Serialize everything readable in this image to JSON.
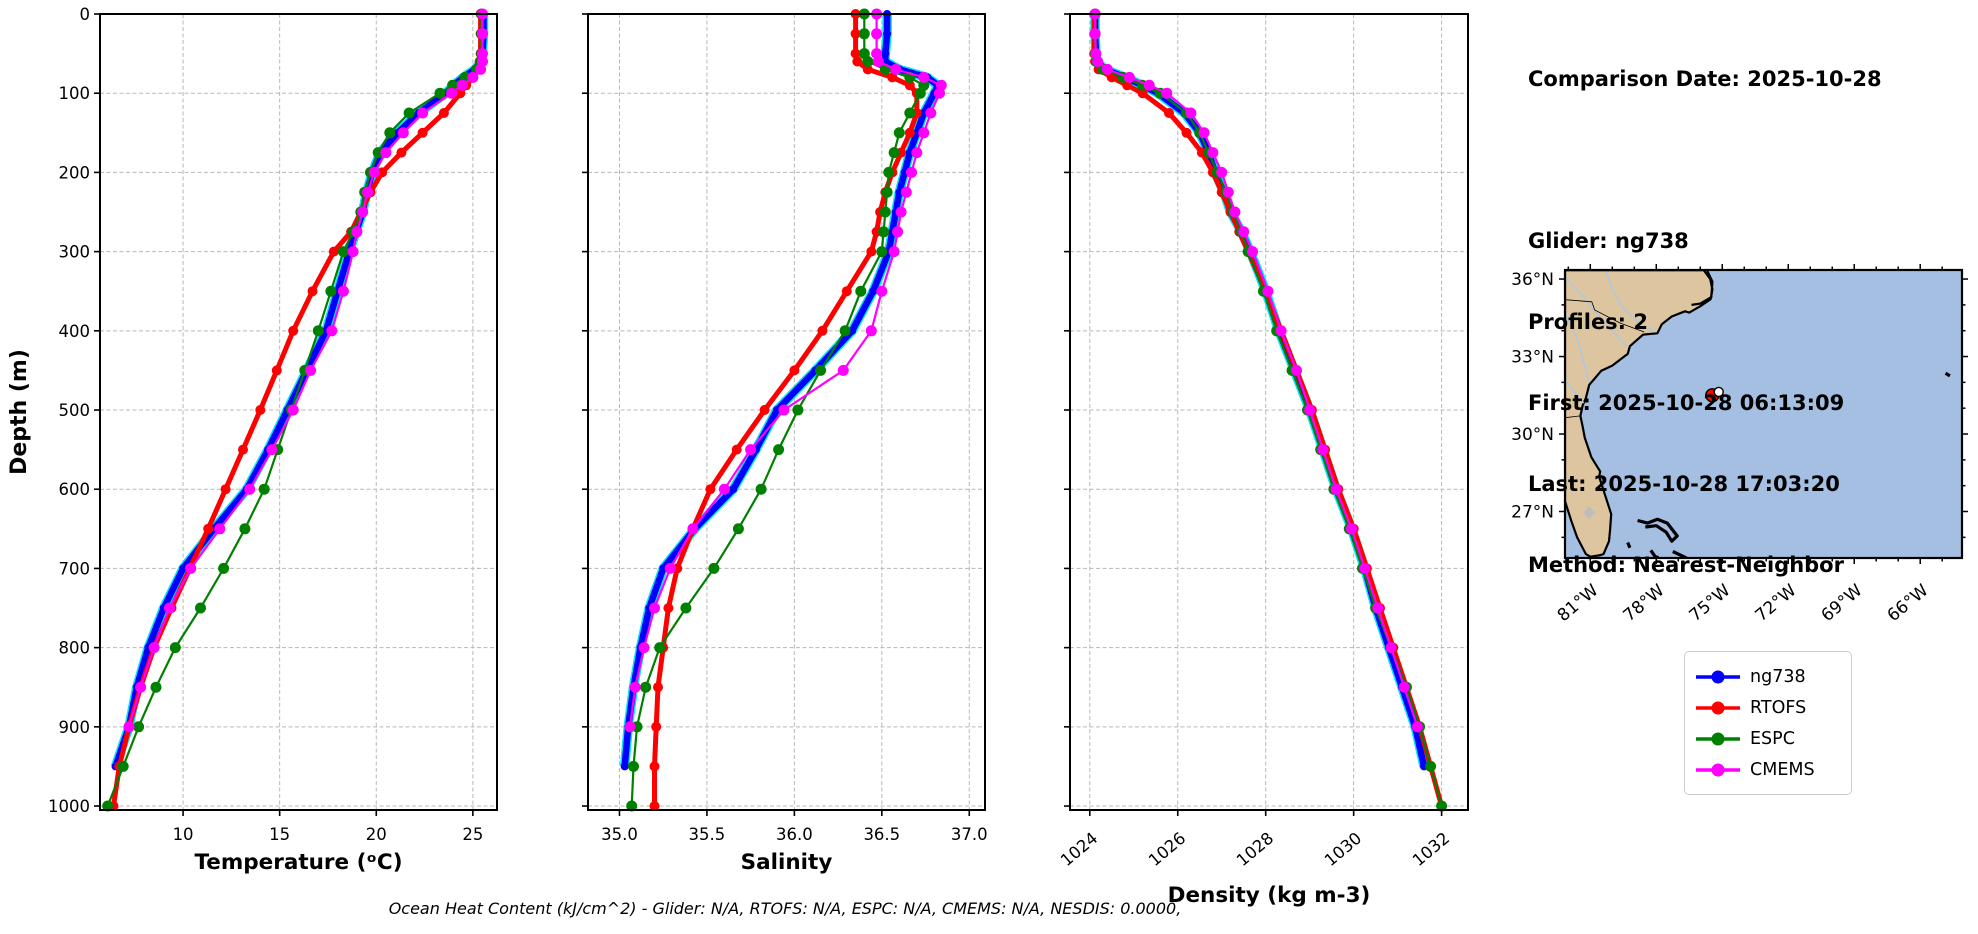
{
  "info": {
    "lines": [
      "Comparison Date: 2025-10-28",
      "",
      "Glider: ng738",
      "Profiles: 2",
      "First: 2025-10-28 06:13:09",
      "Last: 2025-10-28 17:03:20",
      "Method: Nearest-Neighbor"
    ]
  },
  "footer": {
    "text": "Ocean Heat Content (kJ/cm^2) - Glider: N/A,  RTOFS: N/A,  ESPC: N/A,  CMEMS: N/A,  NESDIS: 0.0000,"
  },
  "legend": {
    "items": [
      {
        "label": "ng738",
        "color": "#0000ff"
      },
      {
        "label": "RTOFS",
        "color": "#ff0000"
      },
      {
        "label": "ESPC",
        "color": "#008000"
      },
      {
        "label": "CMEMS",
        "color": "#ff00ff"
      }
    ]
  },
  "chart_data": {
    "type": "line",
    "orientation": "depth-profile",
    "ylabel": "Depth (m)",
    "ylim": [
      0,
      1005
    ],
    "yticks": [
      0,
      100,
      200,
      300,
      400,
      500,
      600,
      700,
      800,
      900,
      1000
    ],
    "grid": "dashed",
    "depths": [
      0,
      25,
      50,
      60,
      70,
      80,
      90,
      100,
      125,
      150,
      175,
      200,
      225,
      250,
      275,
      300,
      350,
      400,
      450,
      500,
      550,
      600,
      650,
      700,
      750,
      800,
      850,
      900,
      950,
      1000
    ],
    "series_style": [
      {
        "name": "ng738",
        "color": "#0000ff",
        "underlay": "#00e8f0",
        "lw": 6.5,
        "marker_r": 4
      },
      {
        "name": "RTOFS",
        "color": "#ff0000",
        "lw": 5,
        "marker_r": 5
      },
      {
        "name": "ESPC",
        "color": "#008000",
        "lw": 2.2,
        "marker_r": 5.5
      },
      {
        "name": "CMEMS",
        "color": "#ff00ff",
        "lw": 2.2,
        "marker_r": 5.5
      }
    ],
    "panels": [
      {
        "id": "temperature",
        "xlabel": "Temperature (ᵒC)",
        "xlim": [
          5.7,
          26.25
        ],
        "xticks": [
          10,
          15,
          20,
          25
        ],
        "xtick_labels": [
          "10",
          "15",
          "20",
          "25"
        ],
        "rotate_xticks": false,
        "series": [
          {
            "name": "ng738",
            "values": [
              25.55,
              25.55,
              25.5,
              25.45,
              25.1,
              24.5,
              24.0,
              23.6,
              22.2,
              21.1,
              20.2,
              19.8,
              19.5,
              19.3,
              18.95,
              18.6,
              18.0,
              17.4,
              16.4,
              15.4,
              14.4,
              13.3,
              11.6,
              10.0,
              9.0,
              8.2,
              7.6,
              7.2,
              6.5
            ]
          },
          {
            "name": "RTOFS",
            "values": [
              25.4,
              25.4,
              25.4,
              25.35,
              25.3,
              25.0,
              24.65,
              24.35,
              23.5,
              22.4,
              21.3,
              20.3,
              19.7,
              19.2,
              18.7,
              17.8,
              16.7,
              15.7,
              14.85,
              14.0,
              13.1,
              12.2,
              11.3,
              10.35,
              9.4,
              8.5,
              7.8,
              7.2,
              6.7,
              6.4
            ]
          },
          {
            "name": "ESPC",
            "values": [
              25.45,
              25.45,
              25.45,
              25.4,
              25.2,
              24.6,
              23.95,
              23.3,
              21.7,
              20.7,
              20.1,
              19.7,
              19.4,
              19.2,
              18.8,
              18.3,
              17.65,
              17.0,
              16.3,
              15.6,
              14.9,
              14.2,
              13.2,
              12.1,
              10.9,
              9.6,
              8.6,
              7.7,
              6.9,
              6.1
            ]
          },
          {
            "name": "CMEMS",
            "values": [
              25.5,
              25.5,
              25.5,
              25.5,
              25.4,
              25.0,
              24.45,
              23.9,
              22.4,
              21.4,
              20.5,
              19.9,
              19.55,
              19.3,
              19.0,
              18.8,
              18.3,
              17.7,
              16.6,
              15.7,
              14.6,
              13.45,
              11.9,
              10.4,
              9.3,
              8.5,
              7.8,
              7.2
            ]
          }
        ]
      },
      {
        "id": "salinity",
        "xlabel": "Salinity",
        "xlim": [
          34.82,
          37.09
        ],
        "xticks": [
          35.0,
          35.5,
          36.0,
          36.5,
          37.0
        ],
        "xtick_labels": [
          "35.0",
          "35.5",
          "36.0",
          "36.5",
          "37.0"
        ],
        "rotate_xticks": false,
        "series": [
          {
            "name": "ng738",
            "values": [
              36.53,
              36.53,
              36.52,
              36.52,
              36.6,
              36.76,
              36.82,
              36.8,
              36.74,
              36.7,
              36.66,
              36.63,
              36.6,
              36.58,
              36.56,
              36.54,
              36.45,
              36.33,
              36.12,
              35.9,
              35.78,
              35.65,
              35.43,
              35.25,
              35.17,
              35.12,
              35.08,
              35.05,
              35.03
            ]
          },
          {
            "name": "RTOFS",
            "values": [
              36.35,
              36.35,
              36.35,
              36.36,
              36.42,
              36.56,
              36.66,
              36.7,
              36.7,
              36.66,
              36.61,
              36.56,
              36.52,
              36.49,
              36.47,
              36.44,
              36.3,
              36.16,
              36.0,
              35.83,
              35.67,
              35.52,
              35.42,
              35.33,
              35.28,
              35.25,
              35.22,
              35.21,
              35.2,
              35.2
            ]
          },
          {
            "name": "ESPC",
            "values": [
              36.4,
              36.4,
              36.4,
              36.42,
              36.52,
              36.66,
              36.74,
              36.72,
              36.66,
              36.6,
              36.57,
              36.54,
              36.53,
              36.52,
              36.51,
              36.5,
              36.38,
              36.29,
              36.15,
              36.02,
              35.91,
              35.81,
              35.68,
              35.54,
              35.38,
              35.23,
              35.15,
              35.1,
              35.08,
              35.07
            ]
          },
          {
            "name": "CMEMS",
            "values": [
              36.47,
              36.47,
              36.47,
              36.48,
              36.58,
              36.74,
              36.84,
              36.83,
              36.78,
              36.74,
              36.7,
              36.67,
              36.64,
              36.61,
              36.59,
              36.57,
              36.5,
              36.44,
              36.28,
              35.94,
              35.75,
              35.6,
              35.42,
              35.29,
              35.2,
              35.14,
              35.09,
              35.06
            ]
          }
        ]
      },
      {
        "id": "density",
        "xlabel": "Density (kg m-3)",
        "xlim": [
          1023.55,
          1032.6
        ],
        "xticks": [
          1024,
          1026,
          1028,
          1030,
          1032
        ],
        "xtick_labels": [
          "1024",
          "1026",
          "1028",
          "1030",
          "1032"
        ],
        "rotate_xticks": true,
        "series": [
          {
            "name": "ng738",
            "values": [
              1024.12,
              1024.12,
              1024.14,
              1024.16,
              1024.35,
              1024.8,
              1025.2,
              1025.55,
              1026.15,
              1026.5,
              1026.7,
              1026.85,
              1027.05,
              1027.2,
              1027.45,
              1027.65,
              1028.0,
              1028.3,
              1028.65,
              1029.0,
              1029.3,
              1029.6,
              1029.95,
              1030.25,
              1030.5,
              1030.8,
              1031.1,
              1031.4,
              1031.6
            ]
          },
          {
            "name": "RTOFS",
            "values": [
              1024.1,
              1024.1,
              1024.1,
              1024.12,
              1024.2,
              1024.5,
              1024.85,
              1025.2,
              1025.8,
              1026.2,
              1026.55,
              1026.8,
              1027.0,
              1027.2,
              1027.4,
              1027.6,
              1028.0,
              1028.35,
              1028.7,
              1029.05,
              1029.35,
              1029.65,
              1030.0,
              1030.3,
              1030.6,
              1030.9,
              1031.2,
              1031.5,
              1031.75,
              1032.0
            ]
          },
          {
            "name": "ESPC",
            "values": [
              1024.12,
              1024.12,
              1024.13,
              1024.15,
              1024.3,
              1024.75,
              1025.2,
              1025.6,
              1026.2,
              1026.5,
              1026.7,
              1026.9,
              1027.1,
              1027.25,
              1027.45,
              1027.6,
              1027.95,
              1028.25,
              1028.6,
              1028.95,
              1029.25,
              1029.55,
              1029.9,
              1030.2,
              1030.5,
              1030.85,
              1031.2,
              1031.5,
              1031.75,
              1032.0
            ]
          },
          {
            "name": "CMEMS",
            "values": [
              1024.12,
              1024.12,
              1024.14,
              1024.18,
              1024.4,
              1024.9,
              1025.35,
              1025.75,
              1026.3,
              1026.6,
              1026.8,
              1027.0,
              1027.15,
              1027.3,
              1027.5,
              1027.7,
              1028.05,
              1028.35,
              1028.7,
              1029.0,
              1029.3,
              1029.6,
              1029.95,
              1030.25,
              1030.55,
              1030.85,
              1031.15,
              1031.45
            ]
          }
        ]
      }
    ]
  },
  "map": {
    "lon_lim": [
      -82.15,
      -64.1
    ],
    "lat_lim": [
      25.2,
      36.35
    ],
    "lat_ticks": [
      {
        "label": "36°N",
        "value": 36
      },
      {
        "label": "33°N",
        "value": 33
      },
      {
        "label": "30°N",
        "value": 30
      },
      {
        "label": "27°N",
        "value": 27
      }
    ],
    "lon_ticks": [
      {
        "label": "81°W",
        "value": -81
      },
      {
        "label": "78°W",
        "value": -78
      },
      {
        "label": "75°W",
        "value": -75
      },
      {
        "label": "72°W",
        "value": -72
      },
      {
        "label": "69°W",
        "value": -69
      },
      {
        "label": "66°W",
        "value": -66
      }
    ],
    "ocean_color": "#a4bfe1",
    "land_color": "#ddc69f",
    "river_color": "#a9c7e8",
    "lake_color": "#bdbdbd",
    "coast_color": "#000000",
    "markers": [
      {
        "name": "comparison-location",
        "color": "#ff0000",
        "lon": -75.45,
        "lat": 31.5,
        "r": 6.5
      },
      {
        "name": "glider-location",
        "color": "#ffffff",
        "lon": -75.16,
        "lat": 31.63,
        "r": 4.5
      }
    ],
    "features": {
      "land": [
        [
          -82.15,
          27.4
        ],
        [
          -82.0,
          27.0
        ],
        [
          -81.85,
          26.6
        ],
        [
          -81.6,
          26.0
        ],
        [
          -81.2,
          25.35
        ],
        [
          -81.0,
          25.25
        ],
        [
          -80.6,
          25.3
        ],
        [
          -80.4,
          25.35
        ],
        [
          -80.15,
          25.85
        ],
        [
          -80.1,
          26.3
        ],
        [
          -80.05,
          26.9
        ],
        [
          -80.2,
          27.3
        ],
        [
          -80.6,
          28.35
        ],
        [
          -80.55,
          28.55
        ],
        [
          -80.95,
          29.1
        ],
        [
          -81.25,
          29.85
        ],
        [
          -81.35,
          30.3
        ],
        [
          -81.45,
          30.7
        ],
        [
          -81.35,
          31.1
        ],
        [
          -81.2,
          31.4
        ],
        [
          -81.05,
          31.9
        ],
        [
          -80.85,
          32.1
        ],
        [
          -80.5,
          32.45
        ],
        [
          -80.0,
          32.65
        ],
        [
          -79.3,
          33.1
        ],
        [
          -79.2,
          33.4
        ],
        [
          -78.6,
          33.85
        ],
        [
          -77.95,
          33.9
        ],
        [
          -77.75,
          34.25
        ],
        [
          -77.3,
          34.55
        ],
        [
          -76.7,
          34.75
        ],
        [
          -76.5,
          34.7
        ],
        [
          -76.0,
          34.95
        ],
        [
          -75.53,
          35.22
        ],
        [
          -75.45,
          35.6
        ],
        [
          -75.55,
          36.0
        ],
        [
          -75.85,
          36.35
        ],
        [
          -82.15,
          36.35
        ]
      ],
      "outer_banks": [
        [
          -75.7,
          36.35
        ],
        [
          -75.45,
          35.9
        ],
        [
          -75.5,
          35.3
        ],
        [
          -76.0,
          35.05
        ],
        [
          -76.4,
          35.0
        ]
      ],
      "islands": [
        [
          [
            -78.85,
            26.65
          ],
          [
            -78.4,
            26.55
          ],
          [
            -77.95,
            26.7
          ],
          [
            -77.5,
            26.55
          ],
          [
            -77.05,
            26.05
          ],
          [
            -77.3,
            25.85
          ],
          [
            -77.55,
            26.2
          ],
          [
            -78.0,
            26.45
          ],
          [
            -78.5,
            26.4
          ]
        ],
        [
          [
            -78.25,
            25.5
          ],
          [
            -78.05,
            25.25
          ],
          [
            -77.9,
            25.22
          ]
        ],
        [
          [
            -77.25,
            25.45
          ],
          [
            -76.75,
            25.25
          ],
          [
            -76.3,
            25.05
          ]
        ],
        [
          [
            -79.3,
            25.8
          ],
          [
            -79.2,
            25.6
          ]
        ],
        [
          [
            -64.85,
            32.35
          ],
          [
            -64.65,
            32.25
          ]
        ]
      ],
      "rivers": [
        [
          [
            -82.15,
            36.05
          ],
          [
            -81.35,
            35.35
          ],
          [
            -80.7,
            34.65
          ],
          [
            -79.95,
            33.95
          ],
          [
            -79.35,
            33.4
          ]
        ],
        [
          [
            -80.3,
            36.35
          ],
          [
            -80.0,
            35.6
          ],
          [
            -79.5,
            34.85
          ],
          [
            -78.65,
            34.2
          ],
          [
            -78.0,
            33.95
          ]
        ],
        [
          [
            -82.15,
            34.7
          ],
          [
            -81.55,
            33.6
          ],
          [
            -81.15,
            32.3
          ],
          [
            -81.05,
            32.0
          ]
        ],
        [
          [
            -82.15,
            32.1
          ],
          [
            -81.6,
            31.5
          ],
          [
            -81.3,
            31.2
          ]
        ]
      ],
      "borders": [
        [
          [
            -82.15,
            36.32
          ],
          [
            -75.9,
            36.32
          ]
        ],
        [
          [
            -82.15,
            35.2
          ],
          [
            -80.93,
            35.12
          ],
          [
            -80.8,
            34.8
          ],
          [
            -79.65,
            34.3
          ],
          [
            -78.55,
            33.95
          ]
        ],
        [
          [
            -82.15,
            30.63
          ],
          [
            -81.45,
            30.7
          ]
        ]
      ],
      "lake": {
        "lon": -81.05,
        "lat": 26.95,
        "size": 9
      }
    }
  }
}
